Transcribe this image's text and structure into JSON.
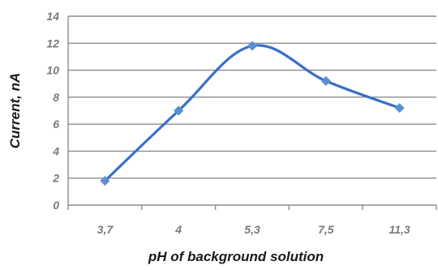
{
  "chart_data": {
    "type": "line",
    "title": "",
    "xlabel": "pH of background solution",
    "ylabel": "Current, nA",
    "categories": [
      "3,7",
      "4",
      "5,3",
      "7,5",
      "11,3"
    ],
    "series": [
      {
        "values": [
          1.8,
          7.0,
          11.8,
          9.2,
          7.2
        ]
      }
    ],
    "ylim": [
      0,
      14
    ],
    "yticks": [
      0,
      2,
      4,
      6,
      8,
      10,
      12,
      14
    ],
    "grid": true,
    "legend": "none",
    "smooth": true,
    "colors": {
      "line": "#3a6fc9",
      "marker": "#5b8fd0",
      "grid": "#8c8c8c",
      "axis_text": "#7a7a7a",
      "label_text": "#1a1a1a"
    }
  }
}
